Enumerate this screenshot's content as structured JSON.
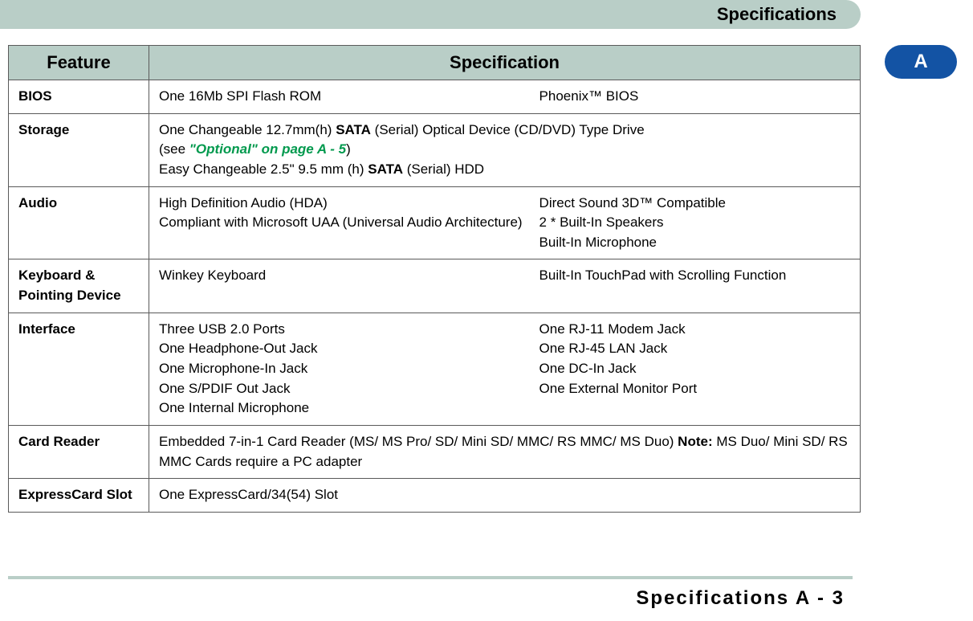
{
  "header": {
    "title": "Specifications"
  },
  "tab": {
    "label": "A"
  },
  "table": {
    "col_feature": "Feature",
    "col_spec": "Specification",
    "rows": {
      "bios": {
        "feature": "BIOS",
        "left": "One 16Mb SPI Flash ROM",
        "right": "Phoenix™ BIOS"
      },
      "storage": {
        "feature": "Storage",
        "line1a": "One Changeable 12.7mm(h) ",
        "line1b": "SATA",
        "line1c": " (Serial) Optical Device (CD/DVD) Type Drive",
        "line2a": "(see ",
        "line2b": "\"Optional\" on page A - 5",
        "line2c": ")",
        "line3a": "Easy Changeable 2.5\" 9.5 mm (h) ",
        "line3b": "SATA",
        "line3c": " (Serial) HDD"
      },
      "audio": {
        "feature": "Audio",
        "left1": "High Definition Audio (HDA)",
        "left2": "Compliant with Microsoft UAA (Universal Audio Architecture)",
        "right1": "Direct Sound 3D™ Compatible",
        "right2": "2 * Built-In Speakers",
        "right3": "Built-In Microphone"
      },
      "keyboard": {
        "feature": "Keyboard & Pointing Device",
        "left": "Winkey Keyboard",
        "right": "Built-In TouchPad with Scrolling Function"
      },
      "interface": {
        "feature": "Interface",
        "l1": "Three USB 2.0 Ports",
        "l2": "One Headphone-Out Jack",
        "l3": "One Microphone-In Jack",
        "l4": "One S/PDIF Out Jack",
        "l5": "One Internal Microphone",
        "r1": "One RJ-11 Modem Jack",
        "r2": "One RJ-45 LAN Jack",
        "r3": "One DC-In Jack",
        "r4": "One External Monitor Port"
      },
      "cardreader": {
        "feature": "Card Reader",
        "text_a": "Embedded 7-in-1 Card Reader (MS/ MS Pro/ SD/ Mini SD/ MMC/ RS MMC/ MS Duo) ",
        "text_b": "Note:",
        "text_c": " MS Duo/ Mini SD/ RS MMC Cards require a PC adapter"
      },
      "express": {
        "feature": "ExpressCard Slot",
        "text": "One ExpressCard/34(54) Slot"
      }
    }
  },
  "footer": {
    "text": "Specifications A - 3"
  },
  "colors": {
    "header_bg": "#b9cec7",
    "tab_bg": "#1353a4",
    "link_green": "#00994d",
    "border": "#5a5a5a"
  }
}
